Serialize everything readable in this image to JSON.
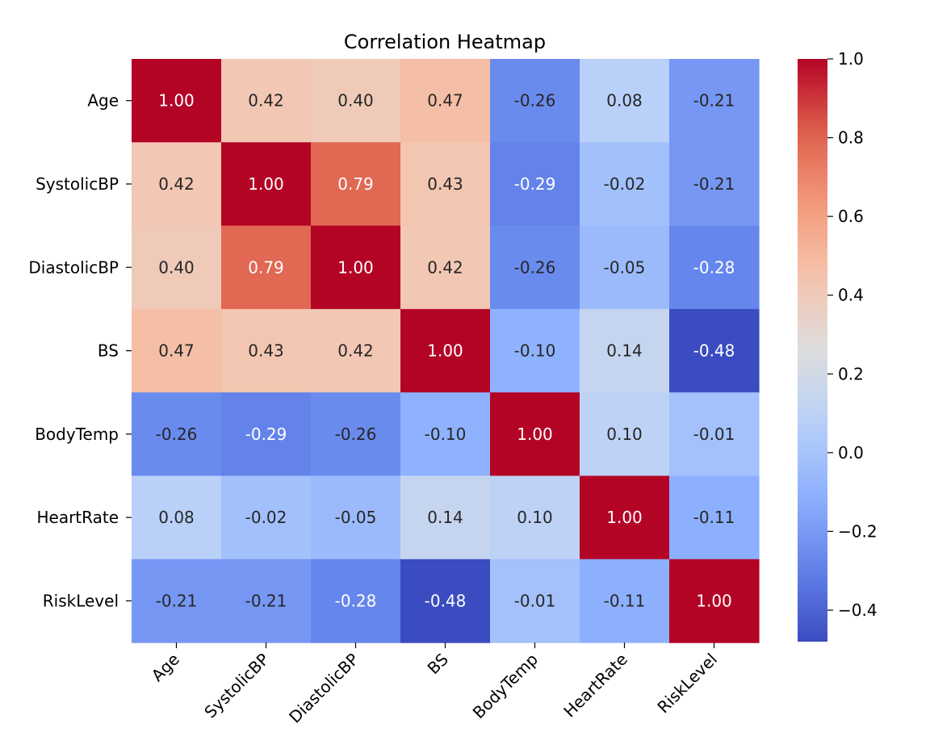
{
  "chart_data": {
    "type": "heatmap",
    "title": "Correlation Heatmap",
    "row_labels": [
      "Age",
      "SystolicBP",
      "DiastolicBP",
      "BS",
      "BodyTemp",
      "HeartRate",
      "RiskLevel"
    ],
    "col_labels": [
      "Age",
      "SystolicBP",
      "DiastolicBP",
      "BS",
      "BodyTemp",
      "HeartRate",
      "RiskLevel"
    ],
    "values": [
      [
        1.0,
        0.42,
        0.4,
        0.47,
        -0.26,
        0.08,
        -0.21
      ],
      [
        0.42,
        1.0,
        0.79,
        0.43,
        -0.29,
        -0.02,
        -0.21
      ],
      [
        0.4,
        0.79,
        1.0,
        0.42,
        -0.26,
        -0.05,
        -0.28
      ],
      [
        0.47,
        0.43,
        0.42,
        1.0,
        -0.1,
        0.14,
        -0.48
      ],
      [
        -0.26,
        -0.29,
        -0.26,
        -0.1,
        1.0,
        0.1,
        -0.01
      ],
      [
        0.08,
        -0.02,
        -0.05,
        0.14,
        0.1,
        1.0,
        -0.11
      ],
      [
        -0.21,
        -0.21,
        -0.28,
        -0.48,
        -0.01,
        -0.11,
        1.0
      ]
    ],
    "annotation_format": "0.00",
    "colormap": "coolwarm",
    "vmin": -0.48,
    "vmax": 1.0,
    "colorbar_ticks": [
      1.0,
      0.8,
      0.6,
      0.4,
      0.2,
      0.0,
      -0.2,
      -0.4
    ],
    "colorbar_tick_labels": [
      "1.0",
      "0.8",
      "0.6",
      "0.4",
      "0.2",
      "0.0",
      "−0.2",
      "−0.4"
    ],
    "xlabel_rotation_deg": 45
  }
}
